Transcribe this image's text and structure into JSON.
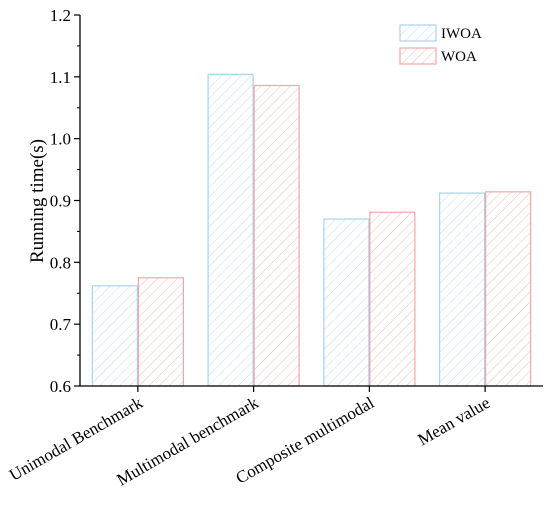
{
  "chart_data": {
    "type": "bar",
    "title": "",
    "xlabel": "",
    "ylabel": "Running time(s)",
    "ylim": [
      0.6,
      1.2
    ],
    "yticks": [
      "0.6",
      "0.7",
      "0.8",
      "0.9",
      "1.0",
      "1.1",
      "1.2"
    ],
    "categories": [
      "Unimodal Benchmark",
      "Multimodal benchmark",
      "Composite multimodal",
      "Mean value"
    ],
    "series": [
      {
        "name": "IWOA",
        "values": [
          0.762,
          1.104,
          0.87,
          0.912
        ],
        "color": "#a9d3ec",
        "pattern": "diagonal-hatch"
      },
      {
        "name": "WOA",
        "values": [
          0.775,
          1.086,
          0.881,
          0.914
        ],
        "color": "#f2a6a6",
        "pattern": "diagonal-hatch"
      }
    ],
    "legend": {
      "position": "top-right"
    },
    "grid": false
  }
}
